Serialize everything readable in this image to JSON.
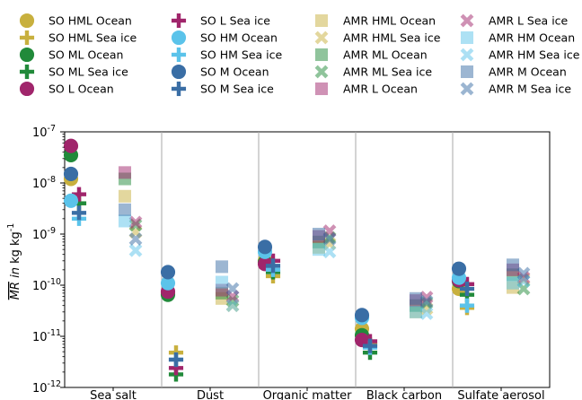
{
  "chart_data": {
    "type": "scatter",
    "categories": [
      "Sea salt",
      "Dust",
      "Organic matter",
      "Black carbon",
      "Sulfate aerosol"
    ],
    "yscale": "log",
    "ylim": [
      1e-12,
      1e-07
    ],
    "ylabel": "MR in kg kg",
    "ylabel_unit_exponent": "-1",
    "ytick_exponents": [
      "-12",
      "-11",
      "-10",
      "-9",
      "-8",
      "-7"
    ],
    "grid": false,
    "legend_position": "top",
    "series": [
      {
        "name": "SO HML Ocean",
        "color": "#c8b03e",
        "marker": "circle",
        "alpha": 1.0,
        "values": [
          1.2e-08,
          7e-11,
          3e-10,
          1.4e-11,
          8.5e-11
        ]
      },
      {
        "name": "SO HML Sea ice",
        "color": "#c8b03e",
        "marker": "plus",
        "alpha": 1.0,
        "values": [
          4e-09,
          4.8e-12,
          1.5e-10,
          7e-12,
          3.6e-11
        ]
      },
      {
        "name": "SO ML Ocean",
        "color": "#218a3a",
        "marker": "circle",
        "alpha": 1.0,
        "values": [
          3.5e-08,
          6.5e-11,
          2.8e-10,
          1.05e-11,
          1.2e-10
        ]
      },
      {
        "name": "SO ML Sea ice",
        "color": "#218a3a",
        "marker": "plus",
        "alpha": 1.0,
        "values": [
          4e-09,
          1.8e-12,
          1.8e-10,
          4.8e-12,
          6.5e-11
        ]
      },
      {
        "name": "SO L Ocean",
        "color": "#a0256b",
        "marker": "circle",
        "alpha": 1.0,
        "values": [
          5.3e-08,
          7.5e-11,
          2.6e-10,
          8.5e-12,
          1.25e-10
        ]
      },
      {
        "name": "SO L Sea ice",
        "color": "#a0256b",
        "marker": "plus",
        "alpha": 1.0,
        "values": [
          6e-09,
          2.4e-12,
          3e-10,
          8e-12,
          1.05e-10
        ]
      },
      {
        "name": "SO HM Ocean",
        "color": "#5bc3ea",
        "marker": "circle",
        "alpha": 1.0,
        "values": [
          4.5e-09,
          1.1e-10,
          4.5e-10,
          2.3e-11,
          1.4e-10
        ]
      },
      {
        "name": "SO HM Sea ice",
        "color": "#5bc3ea",
        "marker": "plus",
        "alpha": 1.0,
        "values": [
          2e-09,
          3.5e-12,
          2e-10,
          6e-12,
          4e-11
        ]
      },
      {
        "name": "SO M Ocean",
        "color": "#3a6ea5",
        "marker": "circle",
        "alpha": 1.0,
        "values": [
          1.5e-08,
          1.8e-10,
          5.6e-10,
          2.6e-11,
          2.1e-10
        ]
      },
      {
        "name": "SO M Sea ice",
        "color": "#3a6ea5",
        "marker": "plus",
        "alpha": 1.0,
        "values": [
          2.6e-09,
          3.5e-12,
          2.4e-10,
          6.5e-12,
          8.5e-11
        ]
      },
      {
        "name": "AMR HML Ocean",
        "color": "#c8b03e",
        "marker": "square",
        "alpha": 0.5,
        "values": [
          5.5e-09,
          5.5e-11,
          5.5e-10,
          3e-11,
          9e-11
        ]
      },
      {
        "name": "AMR HML Sea ice",
        "color": "#c8b03e",
        "marker": "x",
        "alpha": 0.5,
        "values": [
          1.1e-09,
          4e-11,
          6.5e-10,
          3.5e-11,
          1.3e-10
        ]
      },
      {
        "name": "AMR ML Ocean",
        "color": "#218a3a",
        "marker": "square",
        "alpha": 0.5,
        "values": [
          1.2e-08,
          7e-11,
          7e-10,
          4e-11,
          1.6e-10
        ]
      },
      {
        "name": "AMR ML Sea ice",
        "color": "#218a3a",
        "marker": "x",
        "alpha": 0.5,
        "values": [
          1.5e-09,
          5e-11,
          8.5e-10,
          4.5e-11,
          8.5e-11
        ]
      },
      {
        "name": "AMR L Ocean",
        "color": "#a0256b",
        "marker": "square",
        "alpha": 0.5,
        "values": [
          1.6e-08,
          8e-11,
          9e-10,
          5e-11,
          2e-10
        ]
      },
      {
        "name": "AMR L Sea ice",
        "color": "#a0256b",
        "marker": "x",
        "alpha": 0.5,
        "values": [
          1.7e-09,
          6e-11,
          1.15e-09,
          5.8e-11,
          1.4e-10
        ]
      },
      {
        "name": "AMR HM Ocean",
        "color": "#5bc3ea",
        "marker": "square",
        "alpha": 0.5,
        "values": [
          1.8e-09,
          1.15e-10,
          5e-10,
          3e-11,
          1.1e-10
        ]
      },
      {
        "name": "AMR HM Sea ice",
        "color": "#5bc3ea",
        "marker": "x",
        "alpha": 0.5,
        "values": [
          4.8e-10,
          4e-11,
          4.5e-10,
          2.8e-11,
          1.2e-10
        ]
      },
      {
        "name": "AMR M Ocean",
        "color": "#3a6ea5",
        "marker": "square",
        "alpha": 0.5,
        "values": [
          3e-09,
          2.3e-10,
          1e-09,
          5.5e-11,
          2.5e-10
        ]
      },
      {
        "name": "AMR M Sea ice",
        "color": "#3a6ea5",
        "marker": "x",
        "alpha": 0.5,
        "values": [
          8e-10,
          8.5e-11,
          8e-10,
          4.8e-11,
          1.7e-10
        ]
      }
    ]
  }
}
